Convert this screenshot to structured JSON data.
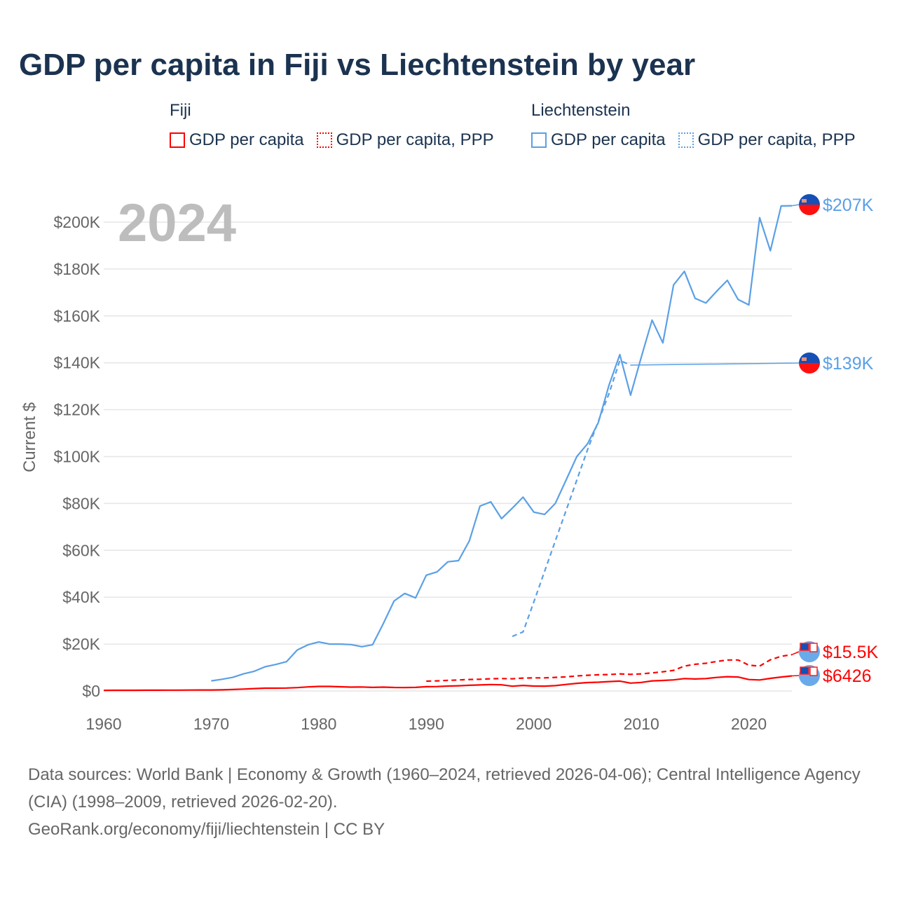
{
  "title": "GDP per capita in Fiji vs Liechtenstein by year",
  "legend": {
    "groups": [
      {
        "name": "Fiji",
        "color": "#ff0000",
        "items": [
          "GDP per capita",
          "GDP per capita, PPP"
        ]
      },
      {
        "name": "Liechtenstein",
        "color": "#5aa0e6",
        "items": [
          "GDP per capita",
          "GDP per capita, PPP"
        ]
      }
    ]
  },
  "year_label": "2024",
  "footer": {
    "line1": "Data sources: World Bank | Economy & Growth (1960–2024, retrieved 2026-04-06); Central Intelligence Agency (CIA) (1998–2009, retrieved 2026-02-20).",
    "line2": "GeoRank.org/economy/fiji/liechtenstein | CC BY"
  },
  "chart_data": {
    "type": "line",
    "title": "GDP per capita in Fiji vs Liechtenstein by year",
    "xlabel": "",
    "ylabel": "Current $",
    "xlim": [
      1960,
      2024
    ],
    "ylim": [
      0,
      210000
    ],
    "x_ticks": [
      1960,
      1970,
      1980,
      1990,
      2000,
      2010,
      2020
    ],
    "x_tick_labels": [
      "1960",
      "1970",
      "1980",
      "1990",
      "2000",
      "2010",
      "2020"
    ],
    "y_ticks": [
      0,
      20000,
      40000,
      60000,
      80000,
      100000,
      120000,
      140000,
      160000,
      180000,
      200000
    ],
    "y_tick_labels": [
      "$0",
      "$20K",
      "$40K",
      "$60K",
      "$80K",
      "$100K",
      "$120K",
      "$140K",
      "$160K",
      "$180K",
      "$200K"
    ],
    "grid": true,
    "legend_position": "top",
    "series": [
      {
        "name": "Liechtenstein GDP per capita",
        "color": "#5aa0e6",
        "dash": false,
        "end_label": "$207K",
        "flag": "liechtenstein",
        "x": [
          1970,
          1971,
          1972,
          1973,
          1974,
          1975,
          1976,
          1977,
          1978,
          1979,
          1980,
          1981,
          1982,
          1983,
          1984,
          1985,
          1986,
          1987,
          1988,
          1989,
          1990,
          1991,
          1992,
          1993,
          1994,
          1995,
          1996,
          1997,
          1998,
          1999,
          2000,
          2001,
          2002,
          2003,
          2004,
          2005,
          2006,
          2007,
          2008,
          2009,
          2010,
          2011,
          2012,
          2013,
          2014,
          2015,
          2016,
          2017,
          2018,
          2019,
          2020,
          2021,
          2022,
          2023,
          2024
        ],
        "y": [
          4300,
          5000,
          5800,
          7300,
          8400,
          10300,
          11300,
          12500,
          17500,
          19700,
          20900,
          20000,
          20000,
          19800,
          18900,
          19700,
          28700,
          38400,
          41600,
          39700,
          49400,
          50800,
          55100,
          55600,
          64000,
          78900,
          80700,
          73500,
          78000,
          82700,
          76300,
          75300,
          80000,
          90000,
          100000,
          105500,
          114500,
          130600,
          143500,
          126200,
          142500,
          158200,
          148500,
          173200,
          179000,
          167500,
          165500,
          170500,
          175200,
          167000,
          164700,
          201900,
          187800,
          206900,
          207000
        ]
      },
      {
        "name": "Liechtenstein GDP per capita, PPP",
        "color": "#5aa0e6",
        "dash": true,
        "end_label": "$139K",
        "flag": "liechtenstein",
        "x": [
          1998,
          1999,
          2000,
          2001,
          2002,
          2003,
          2004,
          2005,
          2006,
          2007,
          2008,
          2009
        ],
        "y": [
          23300,
          25200,
          38000,
          51000,
          64000,
          77000,
          90000,
          103000,
          115000,
          127000,
          141000,
          139000
        ]
      },
      {
        "name": "Fiji GDP per capita",
        "color": "#ff0000",
        "dash": false,
        "end_label": "$6426",
        "flag": "fiji",
        "x": [
          1960,
          1961,
          1962,
          1963,
          1964,
          1965,
          1966,
          1967,
          1968,
          1969,
          1970,
          1971,
          1972,
          1973,
          1974,
          1975,
          1976,
          1977,
          1978,
          1979,
          1980,
          1981,
          1982,
          1983,
          1984,
          1985,
          1986,
          1987,
          1988,
          1989,
          1990,
          1991,
          1992,
          1993,
          1994,
          1995,
          1996,
          1997,
          1998,
          1999,
          2000,
          2001,
          2002,
          2003,
          2004,
          2005,
          2006,
          2007,
          2008,
          2009,
          2010,
          2011,
          2012,
          2013,
          2014,
          2015,
          2016,
          2017,
          2018,
          2019,
          2020,
          2021,
          2022,
          2023,
          2024
        ],
        "y": [
          280,
          286,
          294,
          306,
          334,
          338,
          345,
          360,
          383,
          418,
          428,
          486,
          614,
          800,
          1030,
          1190,
          1210,
          1260,
          1440,
          1730,
          1950,
          1930,
          1800,
          1640,
          1690,
          1520,
          1650,
          1500,
          1460,
          1530,
          1810,
          1870,
          2090,
          2200,
          2420,
          2580,
          2760,
          2630,
          2040,
          2360,
          2080,
          2050,
          2260,
          2780,
          3260,
          3600,
          3740,
          4000,
          4220,
          3360,
          3650,
          4310,
          4490,
          4720,
          5290,
          5120,
          5290,
          5760,
          6110,
          5960,
          4860,
          4700,
          5380,
          5940,
          6426
        ]
      },
      {
        "name": "Fiji GDP per capita, PPP",
        "color": "#ff0000",
        "dash": true,
        "end_label": "$15.5K",
        "flag": "fiji",
        "x": [
          1990,
          1991,
          1992,
          1993,
          1994,
          1995,
          1996,
          1997,
          1998,
          1999,
          2000,
          2001,
          2002,
          2003,
          2004,
          2005,
          2006,
          2007,
          2008,
          2009,
          2010,
          2011,
          2012,
          2013,
          2014,
          2015,
          2016,
          2017,
          2018,
          2019,
          2020,
          2021,
          2022,
          2023,
          2024
        ],
        "y": [
          4200,
          4300,
          4500,
          4700,
          4900,
          5000,
          5200,
          5300,
          5200,
          5500,
          5600,
          5600,
          5800,
          6000,
          6400,
          6700,
          6900,
          7000,
          7300,
          7100,
          7300,
          7700,
          8200,
          8800,
          10600,
          11400,
          11800,
          12600,
          13200,
          13200,
          11000,
          10600,
          13300,
          14800,
          15500
        ]
      }
    ]
  }
}
